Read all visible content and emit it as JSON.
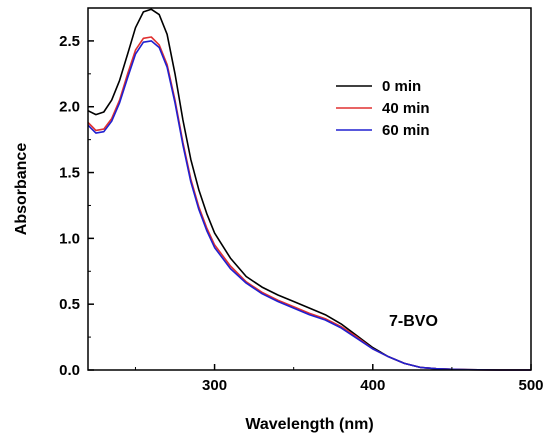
{
  "chart_data": {
    "type": "line",
    "xlabel": "Wavelength (nm)",
    "ylabel": "Absorbance",
    "xlim": [
      220,
      500
    ],
    "ylim": [
      0.0,
      2.75
    ],
    "xticks": [
      300,
      400,
      500
    ],
    "yticks": [
      0.0,
      0.5,
      1.0,
      1.5,
      2.0,
      2.5
    ],
    "xtick_labels": [
      "300",
      "400",
      "500"
    ],
    "ytick_labels": [
      "0.0",
      "0.5",
      "1.0",
      "1.5",
      "2.0",
      "2.5"
    ],
    "grid": false,
    "legend_position": "top-right",
    "annotation": "7-BVO",
    "series": [
      {
        "name": "0 min",
        "color": "#000000",
        "x": [
          220,
          225,
          230,
          235,
          240,
          245,
          250,
          255,
          260,
          265,
          270,
          275,
          280,
          285,
          290,
          295,
          300,
          310,
          320,
          330,
          340,
          350,
          360,
          370,
          380,
          390,
          400,
          410,
          420,
          430,
          440,
          450,
          460,
          480,
          500
        ],
        "y": [
          1.97,
          1.94,
          1.96,
          2.05,
          2.2,
          2.4,
          2.6,
          2.72,
          2.74,
          2.7,
          2.55,
          2.25,
          1.9,
          1.6,
          1.37,
          1.19,
          1.04,
          0.85,
          0.71,
          0.63,
          0.57,
          0.52,
          0.47,
          0.42,
          0.35,
          0.26,
          0.17,
          0.1,
          0.05,
          0.02,
          0.01,
          0.005,
          0.002,
          0.0,
          0.0
        ]
      },
      {
        "name": "40 min",
        "color": "#e03030",
        "x": [
          220,
          225,
          230,
          235,
          240,
          245,
          250,
          255,
          260,
          265,
          270,
          275,
          280,
          285,
          290,
          295,
          300,
          310,
          320,
          330,
          340,
          350,
          360,
          370,
          380,
          390,
          400,
          410,
          420,
          430,
          440,
          450,
          460,
          480,
          500
        ],
        "y": [
          1.88,
          1.82,
          1.83,
          1.91,
          2.05,
          2.25,
          2.43,
          2.52,
          2.53,
          2.47,
          2.32,
          2.05,
          1.73,
          1.45,
          1.24,
          1.08,
          0.95,
          0.79,
          0.67,
          0.59,
          0.53,
          0.48,
          0.43,
          0.39,
          0.33,
          0.25,
          0.16,
          0.1,
          0.05,
          0.02,
          0.01,
          0.005,
          0.002,
          0.0,
          0.0
        ]
      },
      {
        "name": "60 min",
        "color": "#2020d0",
        "x": [
          220,
          225,
          230,
          235,
          240,
          245,
          250,
          255,
          260,
          265,
          270,
          275,
          280,
          285,
          290,
          295,
          300,
          310,
          320,
          330,
          340,
          350,
          360,
          370,
          380,
          390,
          400,
          410,
          420,
          430,
          440,
          450,
          460,
          480,
          500
        ],
        "y": [
          1.86,
          1.8,
          1.81,
          1.89,
          2.03,
          2.22,
          2.4,
          2.49,
          2.5,
          2.45,
          2.3,
          2.03,
          1.71,
          1.43,
          1.22,
          1.06,
          0.93,
          0.77,
          0.66,
          0.58,
          0.52,
          0.47,
          0.42,
          0.38,
          0.32,
          0.24,
          0.16,
          0.1,
          0.05,
          0.02,
          0.01,
          0.005,
          0.002,
          0.0,
          0.0
        ]
      }
    ]
  }
}
